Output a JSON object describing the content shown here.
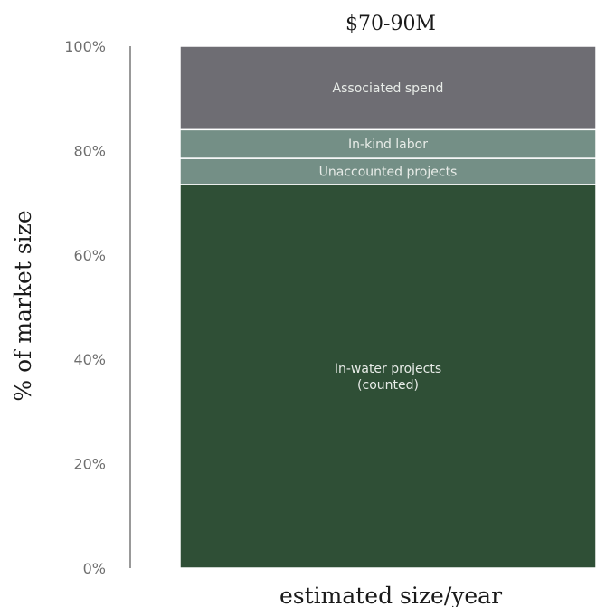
{
  "chart_data": {
    "type": "bar",
    "stacked": true,
    "title": "$70-90M",
    "xlabel": "estimated size/year",
    "ylabel": "% of market size",
    "ylim": [
      0,
      100
    ],
    "yticks": [
      "0%",
      "20%",
      "40%",
      "60%",
      "80%",
      "100%"
    ],
    "categories": [
      ""
    ],
    "series": [
      {
        "name": "In-water projects (counted)",
        "label_lines": [
          "In-water projects",
          "(counted)"
        ],
        "values": [
          73.5
        ],
        "color": "#2f4f36"
      },
      {
        "name": "Unaccounted projects",
        "label_lines": [
          "Unaccounted projects"
        ],
        "values": [
          5
        ],
        "color": "#748f86"
      },
      {
        "name": "In-kind labor",
        "label_lines": [
          "In-kind labor"
        ],
        "values": [
          5.5
        ],
        "color": "#748f86"
      },
      {
        "name": "Associated spend",
        "label_lines": [
          "Associated spend"
        ],
        "values": [
          16
        ],
        "color": "#6e6d73"
      }
    ],
    "grid": false,
    "legend": "none"
  }
}
